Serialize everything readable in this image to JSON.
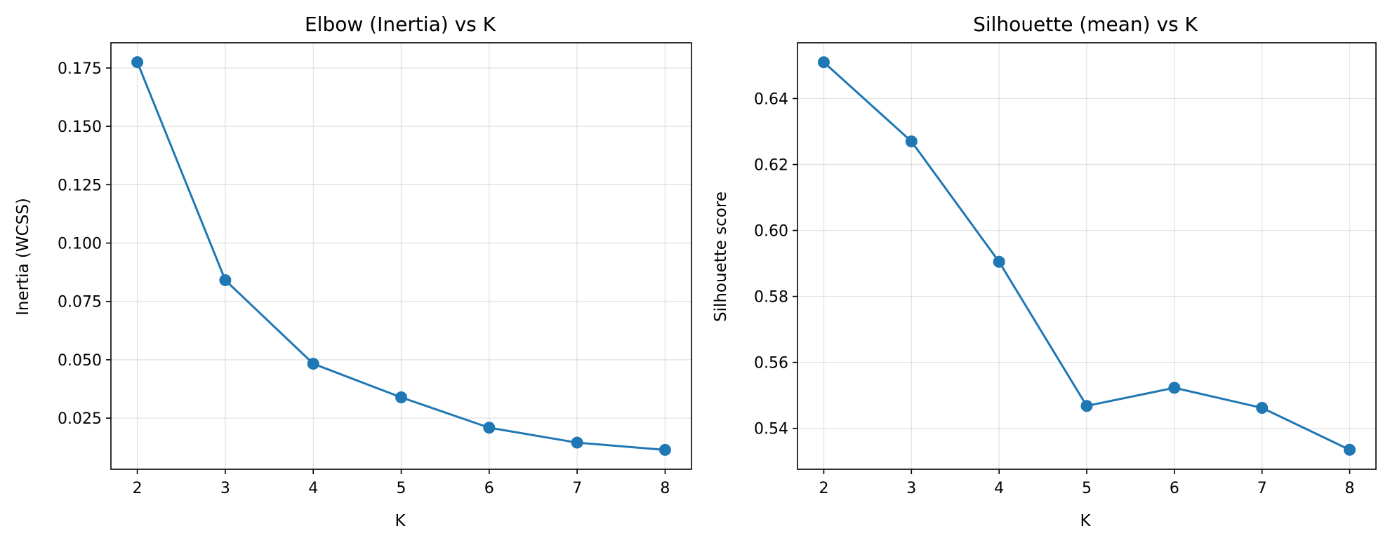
{
  "chart_data": [
    {
      "type": "line",
      "title": "Elbow (Inertia) vs K",
      "xlabel": "K",
      "ylabel": "Inertia (WCSS)",
      "x": [
        2,
        3,
        4,
        5,
        6,
        7,
        8
      ],
      "series": [
        {
          "name": "Inertia",
          "color": "#1f77b4",
          "values": [
            0.1775,
            0.0841,
            0.0483,
            0.0339,
            0.0209,
            0.0145,
            0.0114
          ]
        }
      ],
      "xlim": [
        1.7,
        8.3
      ],
      "ylim": [
        0.0031,
        0.1858
      ],
      "xticks": [
        2,
        3,
        4,
        5,
        6,
        7,
        8
      ],
      "xtick_labels": [
        "2",
        "3",
        "4",
        "5",
        "6",
        "7",
        "8"
      ],
      "yticks": [
        0.025,
        0.05,
        0.075,
        0.1,
        0.125,
        0.15,
        0.175
      ],
      "ytick_labels": [
        "0.025",
        "0.050",
        "0.075",
        "0.100",
        "0.125",
        "0.150",
        "0.175"
      ],
      "grid": true
    },
    {
      "type": "line",
      "title": "Silhouette (mean) vs K",
      "xlabel": "K",
      "ylabel": "Silhouette score",
      "x": [
        2,
        3,
        4,
        5,
        6,
        7,
        8
      ],
      "series": [
        {
          "name": "Silhouette",
          "color": "#1f77b4",
          "values": [
            0.651,
            0.627,
            0.5905,
            0.5468,
            0.5523,
            0.5462,
            0.5335
          ]
        }
      ],
      "xlim": [
        1.7,
        8.3
      ],
      "ylim": [
        0.5276,
        0.6569
      ],
      "xticks": [
        2,
        3,
        4,
        5,
        6,
        7,
        8
      ],
      "xtick_labels": [
        "2",
        "3",
        "4",
        "5",
        "6",
        "7",
        "8"
      ],
      "yticks": [
        0.54,
        0.56,
        0.58,
        0.6,
        0.62,
        0.64
      ],
      "ytick_labels": [
        "0.54",
        "0.56",
        "0.58",
        "0.60",
        "0.62",
        "0.64"
      ],
      "grid": true
    }
  ]
}
